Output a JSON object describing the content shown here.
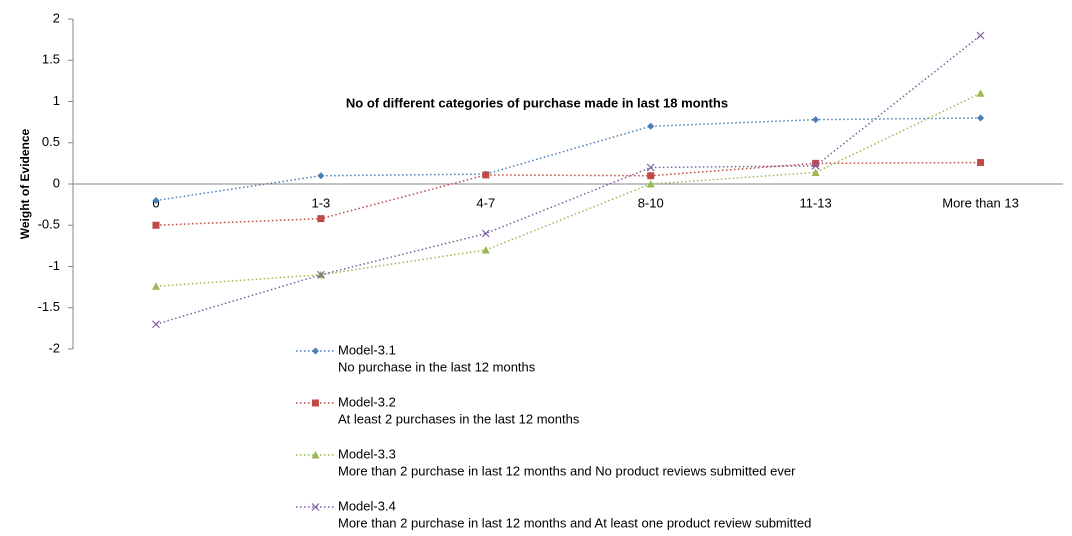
{
  "chart_data": {
    "type": "line",
    "title": "No of different categories of purchase made in last 18 months",
    "y_label": "Weight of Evidence",
    "categories": [
      "0",
      "1-3",
      "4-7",
      "8-10",
      "11-13",
      "More than 13"
    ],
    "series": [
      {
        "name": "Model-3.1",
        "description": "No purchase in the last 12 months",
        "color": "#4a7ebb",
        "marker": "diamond",
        "values": [
          -0.2,
          0.1,
          0.12,
          0.7,
          0.78,
          0.8
        ]
      },
      {
        "name": "Model-3.2",
        "description": "At least 2 purchases in the last 12 months",
        "color": "#be4b48",
        "marker": "square",
        "values": [
          -0.5,
          -0.42,
          0.11,
          0.1,
          0.25,
          0.26
        ]
      },
      {
        "name": "Model-3.3",
        "description": "More than 2 purchase in last 12 months and No product reviews  submitted ever",
        "color": "#98b954",
        "marker": "triangle",
        "values": [
          -1.24,
          -1.1,
          -0.8,
          0,
          0.14,
          1.1
        ]
      },
      {
        "name": "Model-3.4",
        "description": "More than 2 purchase in last 12 months and At least one product review submitted",
        "color": "#7d60a0",
        "marker": "x",
        "values": [
          -1.7,
          -1.1,
          -0.6,
          0.2,
          0.22,
          1.8
        ]
      }
    ],
    "ylim": [
      -2,
      2
    ],
    "yticks": [
      -2,
      -1.5,
      -1,
      -0.5,
      0,
      0.5,
      1,
      1.5,
      2
    ],
    "grid": false
  }
}
